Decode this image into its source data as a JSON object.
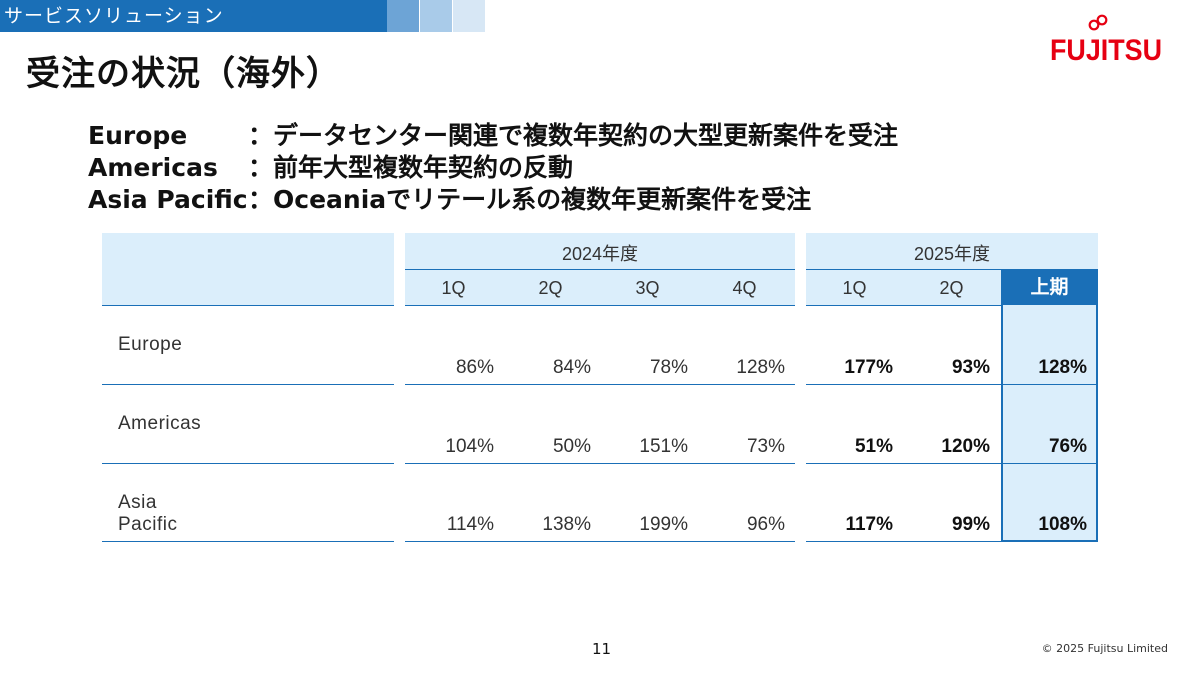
{
  "banner": {
    "section": "サービスソリューション"
  },
  "logo": {
    "text": "FUJITSU",
    "color": "#e60012"
  },
  "title": "受注の状況（海外）",
  "summary": [
    {
      "region": "Europe",
      "text": "：データセンター関連で複数年契約の大型更新案件を受注"
    },
    {
      "region": "Americas",
      "text": "：前年大型複数年契約の反動"
    },
    {
      "region": "Asia Pacific",
      "text": "：Oceaniaでリテール系の複数年更新案件を受注"
    }
  ],
  "table": {
    "fy2024_label": "2024年度",
    "fy2025_label": "2025年度",
    "quarters_2024": [
      "1Q",
      "2Q",
      "3Q",
      "4Q"
    ],
    "quarters_2025": [
      "1Q",
      "2Q"
    ],
    "half_label": "上期",
    "rows": [
      {
        "region": "Europe",
        "fy2024": [
          "86%",
          "84%",
          "78%",
          "128%"
        ],
        "fy2025": [
          "177%",
          "93%"
        ],
        "half": "128%"
      },
      {
        "region": "Americas",
        "fy2024": [
          "104%",
          "50%",
          "151%",
          "73%"
        ],
        "fy2025": [
          "51%",
          "120%"
        ],
        "half": "76%"
      },
      {
        "region": "Asia Pacific",
        "fy2024": [
          "114%",
          "138%",
          "199%",
          "96%"
        ],
        "fy2025": [
          "117%",
          "99%"
        ],
        "half": "108%"
      }
    ]
  },
  "footer": {
    "page_number": "11",
    "copyright": "© 2025 Fujitsu Limited"
  },
  "colors": {
    "accent": "#1a6fb7",
    "header_bg": "#dbeefb"
  }
}
